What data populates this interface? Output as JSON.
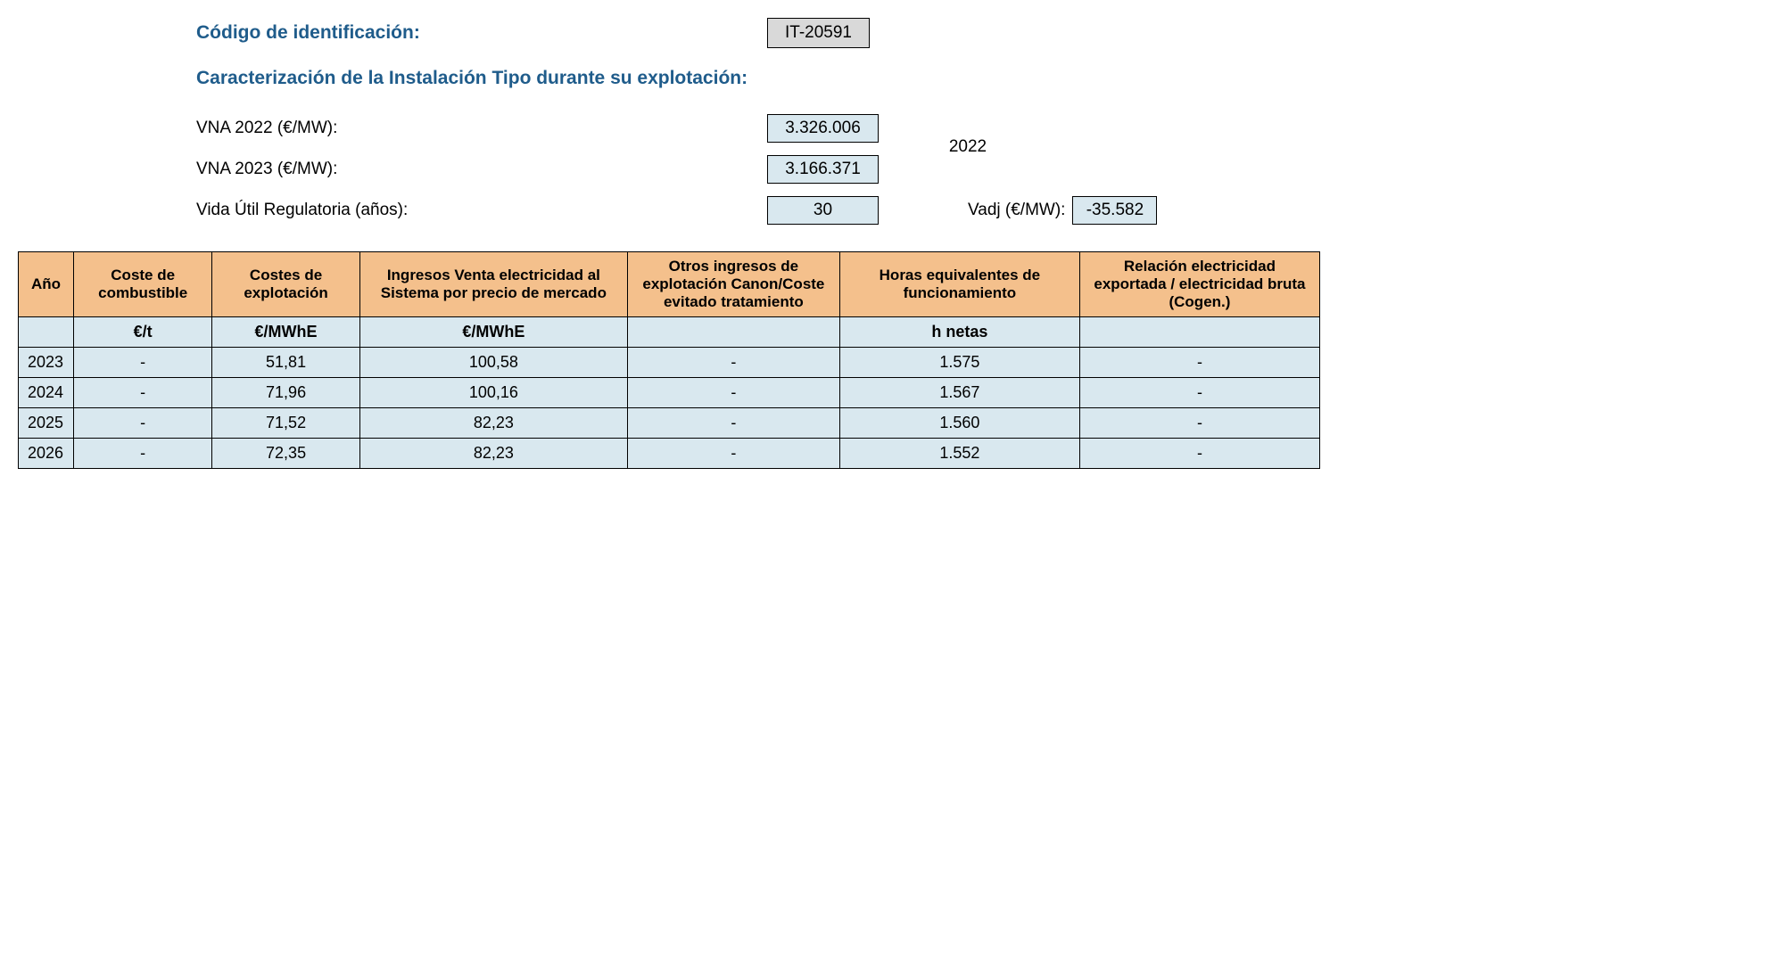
{
  "header": {
    "id_label": "Código de identificación:",
    "id_value": "IT-20591",
    "section_title": "Caracterización de la Instalación Tipo durante su explotación:",
    "vna2022_label": "VNA 2022 (€/MW):",
    "vna2022_value": "3.326.006",
    "vna2023_label": "VNA 2023 (€/MW):",
    "vna2023_value": "3.166.371",
    "vida_label": "Vida Útil Regulatoria (años):",
    "vida_value": "30",
    "year_ref": "2022",
    "vadj_label": "Vadj (€/MW):",
    "vadj_value": "-35.582"
  },
  "table": {
    "columns": [
      "Año",
      "Coste de combustible",
      "Costes de explotación",
      "Ingresos Venta electricidad al Sistema por precio de mercado",
      "Otros ingresos de explotación Canon/Coste evitado tratamiento",
      "Horas equivalentes de funcionamiento",
      "Relación electricidad exportada / electricidad bruta\n(Cogen.)"
    ],
    "units": [
      "",
      "€/t",
      "€/MWhE",
      "€/MWhE",
      "",
      "h netas",
      ""
    ],
    "rows": [
      [
        "2023",
        "-",
        "51,81",
        "100,58",
        "-",
        "1.575",
        "-"
      ],
      [
        "2024",
        "-",
        "71,96",
        "100,16",
        "-",
        "1.567",
        "-"
      ],
      [
        "2025",
        "-",
        "71,52",
        "82,23",
        "-",
        "1.560",
        "-"
      ],
      [
        "2026",
        "-",
        "72,35",
        "82,23",
        "-",
        "1.552",
        "-"
      ]
    ]
  },
  "style": {
    "heading_color": "#1f5c8b",
    "header_bg": "#f4c08c",
    "cell_bg": "#d9e8ef",
    "id_bg": "#d9d9d9",
    "border_color": "#000000",
    "background_color": "#ffffff"
  }
}
